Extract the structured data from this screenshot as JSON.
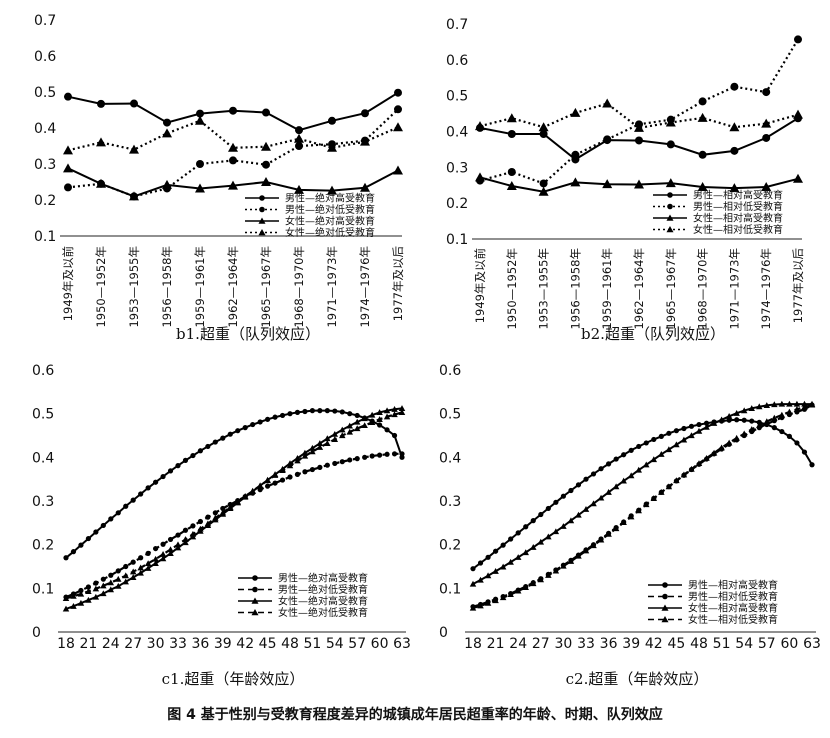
{
  "figure_caption": "图 4   基于性别与受教育程度差异的城镇成年居民超重率的年龄、时期、队列效应",
  "chart_data": [
    {
      "id": "b1",
      "type": "line",
      "title": "b1.超重（队列效应）",
      "ylim": [
        0.1,
        0.7
      ],
      "yticks": [
        "0.1",
        "0.2",
        "0.3",
        "0.4",
        "0.5",
        "0.6",
        "0.7"
      ],
      "categories": [
        "1949年及以前",
        "1950—1952年",
        "1953—1955年",
        "1956—1958年",
        "1959—1961年",
        "1962—1964年",
        "1965—1967年",
        "1968—1970年",
        "1971—1973年",
        "1974—1976年",
        "1977年及以后"
      ],
      "series": [
        {
          "name": "男性—绝对高受教育",
          "style": "solid",
          "marker": "circle",
          "values": [
            0.487,
            0.467,
            0.468,
            0.415,
            0.44,
            0.448,
            0.443,
            0.394,
            0.42,
            0.441,
            0.498
          ]
        },
        {
          "name": "男性—绝对低受教育",
          "style": "dotted",
          "marker": "circle",
          "values": [
            0.235,
            0.245,
            0.21,
            0.232,
            0.3,
            0.31,
            0.298,
            0.35,
            0.355,
            0.365,
            0.452
          ]
        },
        {
          "name": "女性—绝对高受教育",
          "style": "solid",
          "marker": "triangle",
          "values": [
            0.288,
            0.245,
            0.21,
            0.242,
            0.232,
            0.24,
            0.25,
            0.228,
            0.226,
            0.234,
            0.282
          ]
        },
        {
          "name": "女性—绝对低受教育",
          "style": "dotted",
          "marker": "triangle",
          "values": [
            0.338,
            0.36,
            0.34,
            0.385,
            0.42,
            0.345,
            0.348,
            0.37,
            0.345,
            0.362,
            0.402
          ]
        }
      ]
    },
    {
      "id": "b2",
      "type": "line",
      "title": "b2.超重（队列效应）",
      "ylim": [
        0.1,
        0.7
      ],
      "yticks": [
        "0.1",
        "0.2",
        "0.3",
        "0.4",
        "0.5",
        "0.6",
        "0.7"
      ],
      "categories": [
        "1949年及以前",
        "1950—1952年",
        "1953—1955年",
        "1956—1958年",
        "1959—1961年",
        "1962—1964年",
        "1965—1967年",
        "1968—1970年",
        "1971—1973年",
        "1974—1976年",
        "1977年及以后"
      ],
      "series": [
        {
          "name": "男性—相对高受教育",
          "style": "solid",
          "marker": "circle",
          "values": [
            0.41,
            0.393,
            0.393,
            0.322,
            0.376,
            0.375,
            0.364,
            0.335,
            0.346,
            0.382,
            0.437
          ]
        },
        {
          "name": "男性—相对低受教育",
          "style": "dotted",
          "marker": "circle",
          "values": [
            0.263,
            0.287,
            0.255,
            0.335,
            0.378,
            0.42,
            0.433,
            0.484,
            0.525,
            0.51,
            0.657
          ]
        },
        {
          "name": "女性—相对高受教育",
          "style": "solid",
          "marker": "triangle",
          "values": [
            0.272,
            0.248,
            0.232,
            0.258,
            0.253,
            0.252,
            0.256,
            0.245,
            0.242,
            0.245,
            0.268
          ]
        },
        {
          "name": "女性—相对低受教育",
          "style": "dotted",
          "marker": "triangle",
          "values": [
            0.415,
            0.437,
            0.412,
            0.452,
            0.478,
            0.41,
            0.425,
            0.438,
            0.412,
            0.422,
            0.447
          ]
        }
      ]
    },
    {
      "id": "c1",
      "type": "line",
      "title": "c1.超重（年龄效应）",
      "ylim": [
        0,
        0.6
      ],
      "yticks": [
        "0",
        "0.1",
        "0.2",
        "0.3",
        "0.4",
        "0.5",
        "0.6"
      ],
      "x": [
        18,
        19,
        20,
        21,
        22,
        23,
        24,
        25,
        26,
        27,
        28,
        29,
        30,
        31,
        32,
        33,
        34,
        35,
        36,
        37,
        38,
        39,
        40,
        41,
        42,
        43,
        44,
        45,
        46,
        47,
        48,
        49,
        50,
        51,
        52,
        53,
        54,
        55,
        56,
        57,
        58,
        59,
        60,
        61,
        62,
        63
      ],
      "xticks": [
        "18",
        "21",
        "24",
        "27",
        "30",
        "33",
        "36",
        "39",
        "42",
        "45",
        "48",
        "51",
        "54",
        "57",
        "60",
        "63"
      ],
      "series": [
        {
          "name": "男性—绝对高受教育",
          "style": "solid",
          "marker": "circle",
          "values": [
            0.17,
            0.184,
            0.199,
            0.214,
            0.229,
            0.244,
            0.259,
            0.273,
            0.288,
            0.302,
            0.316,
            0.33,
            0.343,
            0.356,
            0.369,
            0.381,
            0.393,
            0.404,
            0.415,
            0.425,
            0.435,
            0.444,
            0.453,
            0.461,
            0.468,
            0.475,
            0.481,
            0.487,
            0.492,
            0.496,
            0.5,
            0.503,
            0.505,
            0.507,
            0.507,
            0.507,
            0.506,
            0.504,
            0.5,
            0.496,
            0.49,
            0.483,
            0.474,
            0.463,
            0.45,
            0.4
          ]
        },
        {
          "name": "男性—绝对低受教育",
          "style": "dashed",
          "marker": "circle",
          "values": [
            0.08,
            0.087,
            0.095,
            0.103,
            0.112,
            0.121,
            0.13,
            0.14,
            0.15,
            0.16,
            0.17,
            0.18,
            0.191,
            0.201,
            0.212,
            0.222,
            0.233,
            0.243,
            0.253,
            0.263,
            0.273,
            0.283,
            0.292,
            0.301,
            0.31,
            0.318,
            0.326,
            0.334,
            0.341,
            0.348,
            0.355,
            0.361,
            0.367,
            0.372,
            0.377,
            0.382,
            0.386,
            0.39,
            0.394,
            0.397,
            0.4,
            0.403,
            0.405,
            0.407,
            0.408,
            0.408
          ]
        },
        {
          "name": "女性—绝对高受教育",
          "style": "solid",
          "marker": "triangle",
          "values": [
            0.053,
            0.059,
            0.066,
            0.073,
            0.08,
            0.088,
            0.097,
            0.105,
            0.115,
            0.125,
            0.135,
            0.146,
            0.157,
            0.168,
            0.18,
            0.193,
            0.205,
            0.218,
            0.231,
            0.244,
            0.257,
            0.27,
            0.283,
            0.296,
            0.309,
            0.322,
            0.335,
            0.348,
            0.361,
            0.373,
            0.386,
            0.398,
            0.41,
            0.421,
            0.432,
            0.443,
            0.453,
            0.463,
            0.472,
            0.481,
            0.489,
            0.497,
            0.503,
            0.507,
            0.51,
            0.512
          ]
        },
        {
          "name": "女性—绝对低受教育",
          "style": "dashed",
          "marker": "triangle",
          "values": [
            0.077,
            0.082,
            0.087,
            0.093,
            0.099,
            0.106,
            0.113,
            0.121,
            0.129,
            0.138,
            0.147,
            0.157,
            0.167,
            0.178,
            0.189,
            0.2,
            0.212,
            0.224,
            0.236,
            0.248,
            0.261,
            0.273,
            0.286,
            0.298,
            0.311,
            0.323,
            0.335,
            0.347,
            0.359,
            0.37,
            0.381,
            0.392,
            0.403,
            0.413,
            0.423,
            0.432,
            0.441,
            0.45,
            0.458,
            0.466,
            0.473,
            0.48,
            0.487,
            0.493,
            0.498,
            0.503
          ]
        }
      ]
    },
    {
      "id": "c2",
      "type": "line",
      "title": "c2.超重（年龄效应）",
      "ylim": [
        0,
        0.6
      ],
      "yticks": [
        "0",
        "0.1",
        "0.2",
        "0.3",
        "0.4",
        "0.5",
        "0.6"
      ],
      "x": [
        18,
        19,
        20,
        21,
        22,
        23,
        24,
        25,
        26,
        27,
        28,
        29,
        30,
        31,
        32,
        33,
        34,
        35,
        36,
        37,
        38,
        39,
        40,
        41,
        42,
        43,
        44,
        45,
        46,
        47,
        48,
        49,
        50,
        51,
        52,
        53,
        54,
        55,
        56,
        57,
        58,
        59,
        60,
        61,
        62,
        63
      ],
      "xticks": [
        "18",
        "21",
        "24",
        "27",
        "30",
        "33",
        "36",
        "39",
        "42",
        "45",
        "48",
        "51",
        "54",
        "57",
        "60",
        "63"
      ],
      "series": [
        {
          "name": "男性—相对高受教育",
          "style": "solid",
          "marker": "circle",
          "values": [
            0.145,
            0.158,
            0.171,
            0.185,
            0.199,
            0.213,
            0.227,
            0.241,
            0.255,
            0.269,
            0.283,
            0.297,
            0.311,
            0.324,
            0.337,
            0.35,
            0.362,
            0.374,
            0.385,
            0.396,
            0.406,
            0.416,
            0.425,
            0.433,
            0.441,
            0.448,
            0.455,
            0.461,
            0.466,
            0.471,
            0.475,
            0.478,
            0.481,
            0.483,
            0.485,
            0.486,
            0.485,
            0.483,
            0.48,
            0.475,
            0.468,
            0.459,
            0.448,
            0.433,
            0.412,
            0.383
          ]
        },
        {
          "name": "男性—相对低受教育",
          "style": "dashed",
          "marker": "circle",
          "values": [
            0.058,
            0.063,
            0.069,
            0.075,
            0.081,
            0.088,
            0.096,
            0.104,
            0.113,
            0.122,
            0.132,
            0.142,
            0.153,
            0.164,
            0.176,
            0.188,
            0.2,
            0.213,
            0.226,
            0.239,
            0.252,
            0.266,
            0.279,
            0.293,
            0.306,
            0.32,
            0.333,
            0.346,
            0.359,
            0.372,
            0.384,
            0.396,
            0.408,
            0.419,
            0.43,
            0.44,
            0.45,
            0.459,
            0.468,
            0.476,
            0.484,
            0.491,
            0.498,
            0.504,
            0.51,
            0.52
          ]
        },
        {
          "name": "女性—相对高受教育",
          "style": "solid",
          "marker": "triangle",
          "values": [
            0.11,
            0.119,
            0.129,
            0.139,
            0.149,
            0.16,
            0.171,
            0.182,
            0.194,
            0.206,
            0.218,
            0.23,
            0.242,
            0.255,
            0.268,
            0.281,
            0.294,
            0.307,
            0.32,
            0.333,
            0.346,
            0.358,
            0.371,
            0.383,
            0.395,
            0.407,
            0.418,
            0.429,
            0.44,
            0.45,
            0.46,
            0.469,
            0.478,
            0.486,
            0.494,
            0.501,
            0.507,
            0.512,
            0.516,
            0.519,
            0.521,
            0.522,
            0.522,
            0.522,
            0.522,
            0.522
          ]
        },
        {
          "name": "女性—相对低受教育",
          "style": "dashed",
          "marker": "triangle",
          "values": [
            0.055,
            0.06,
            0.066,
            0.072,
            0.079,
            0.086,
            0.094,
            0.102,
            0.111,
            0.12,
            0.13,
            0.14,
            0.151,
            0.162,
            0.174,
            0.186,
            0.198,
            0.211,
            0.224,
            0.237,
            0.251,
            0.264,
            0.278,
            0.292,
            0.306,
            0.32,
            0.333,
            0.347,
            0.36,
            0.373,
            0.386,
            0.398,
            0.41,
            0.422,
            0.433,
            0.444,
            0.454,
            0.464,
            0.473,
            0.482,
            0.49,
            0.497,
            0.504,
            0.51,
            0.515,
            0.52
          ]
        }
      ]
    }
  ]
}
